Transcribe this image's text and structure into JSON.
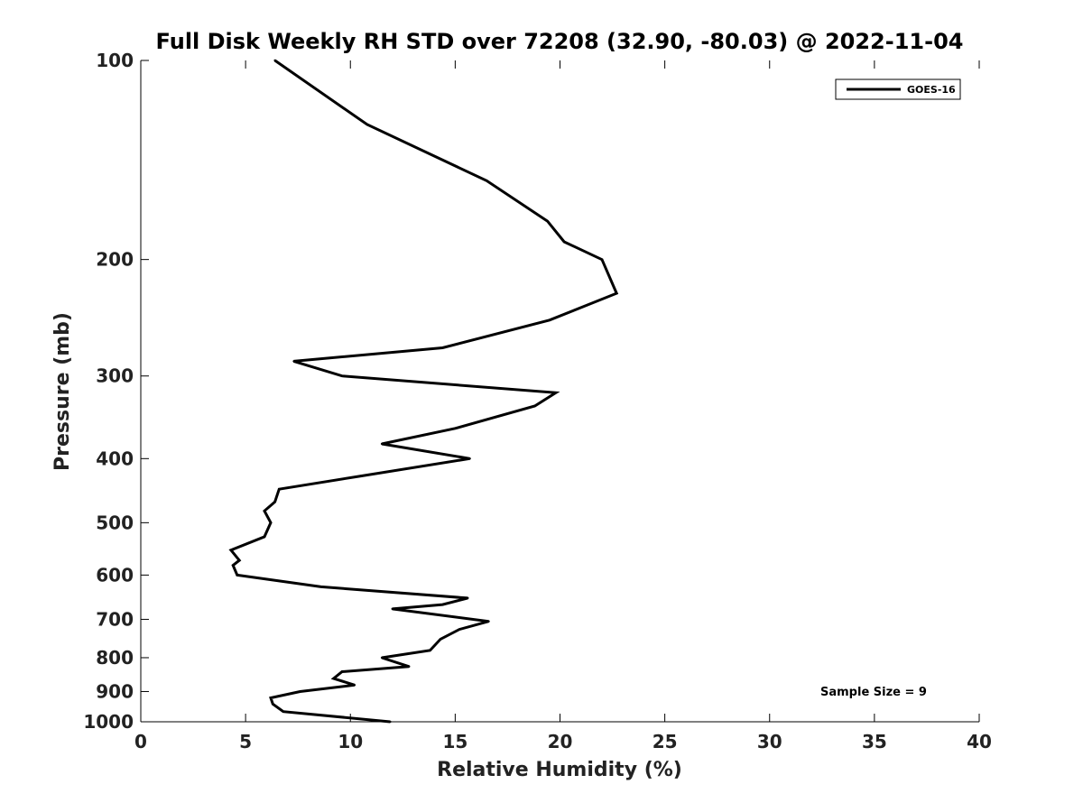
{
  "chart_data": {
    "type": "line",
    "title": "Full Disk Weekly RH STD over 72208 (32.90, -80.03) @ 2022-11-04",
    "xlabel": "Relative Humidity (%)",
    "ylabel": "Pressure (mb)",
    "xlim": [
      0,
      40
    ],
    "ylim": [
      1000,
      100
    ],
    "yscale": "log",
    "y_reversed": true,
    "xticks": [
      0,
      5,
      10,
      15,
      20,
      25,
      30,
      35,
      40
    ],
    "yticks": [
      100,
      200,
      300,
      400,
      500,
      600,
      700,
      800,
      900,
      1000
    ],
    "grid": false,
    "legend_position": "top-right",
    "series": [
      {
        "name": "GOES-16",
        "color": "#000000",
        "x": [
          6.4,
          10.8,
          16.5,
          19.4,
          20.2,
          22.0,
          22.7,
          19.5,
          14.4,
          7.3,
          9.6,
          19.8,
          18.8,
          15.0,
          11.5,
          15.7,
          10.5,
          6.6,
          6.4,
          5.9,
          6.2,
          5.9,
          4.3,
          4.7,
          4.4,
          4.6,
          8.6,
          15.6,
          14.4,
          12.0,
          16.6,
          15.2,
          14.3,
          13.8,
          11.5,
          12.8,
          9.6,
          9.2,
          10.2,
          7.6,
          6.2,
          6.3,
          6.8,
          11.9
        ],
        "y": [
          100,
          125,
          152,
          175,
          188,
          200,
          225,
          247,
          272,
          285,
          300,
          318,
          333,
          360,
          380,
          400,
          425,
          445,
          465,
          480,
          500,
          525,
          550,
          570,
          580,
          600,
          625,
          650,
          665,
          675,
          705,
          725,
          750,
          780,
          800,
          825,
          840,
          860,
          880,
          900,
          920,
          940,
          965,
          1000
        ]
      }
    ],
    "annotations": [
      "Sample Size = 9"
    ]
  }
}
